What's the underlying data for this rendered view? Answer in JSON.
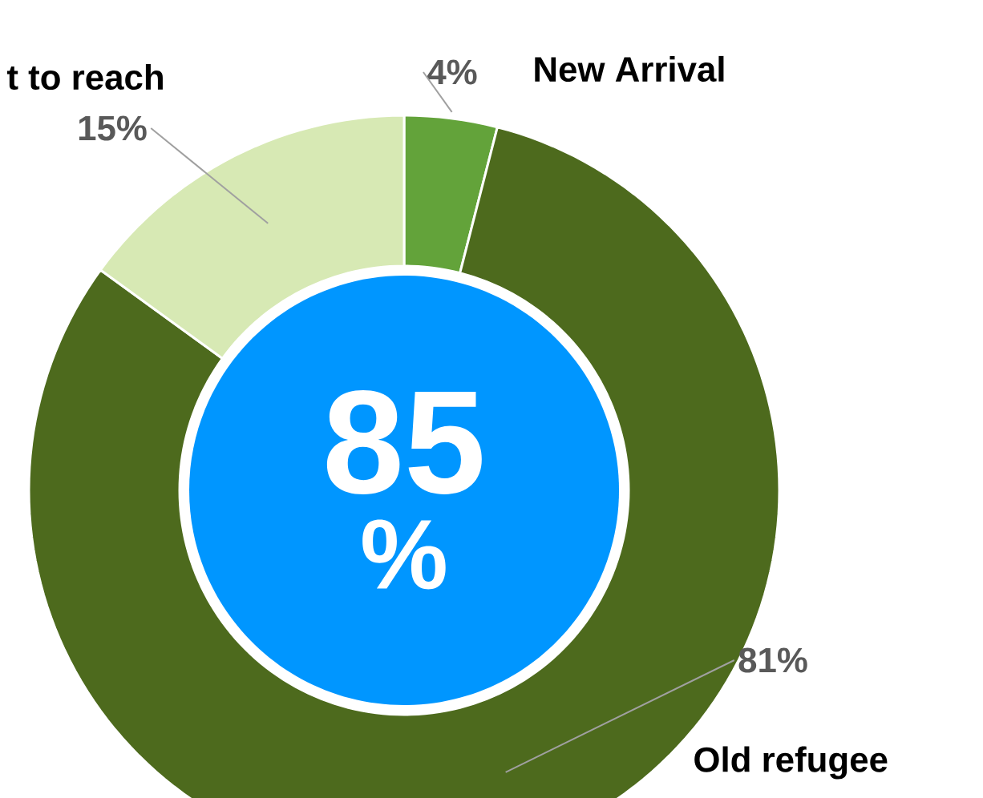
{
  "chart_data": {
    "type": "donut",
    "categories": [
      "New Arrival",
      "Old refugee",
      "t to reach"
    ],
    "values": [
      4,
      81,
      15
    ],
    "colors": [
      "#63a33a",
      "#4d6a1d",
      "#d7e9b4"
    ],
    "value_labels": [
      "4%",
      "81%",
      "15%"
    ],
    "annotations": [
      "85",
      "%"
    ]
  }
}
